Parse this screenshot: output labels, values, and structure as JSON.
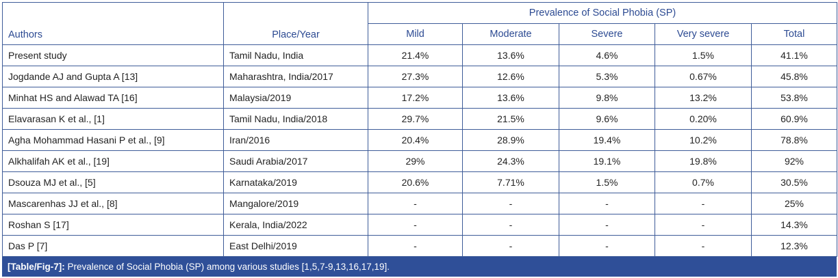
{
  "table": {
    "headers": {
      "authors": "Authors",
      "place": "Place/Year",
      "group": "Prevalence of Social Phobia (SP)",
      "mild": "Mild",
      "moderate": "Moderate",
      "severe": "Severe",
      "very_severe": "Very severe",
      "total": "Total"
    },
    "rows": [
      [
        "Present study",
        "Tamil Nadu, India",
        "21.4%",
        "13.6%",
        "4.6%",
        "1.5%",
        "41.1%"
      ],
      [
        "Jogdande AJ and Gupta A [13]",
        "Maharashtra, India/2017",
        "27.3%",
        "12.6%",
        "5.3%",
        "0.67%",
        "45.8%"
      ],
      [
        "Minhat HS and Alawad TA [16]",
        "Malaysia/2019",
        "17.2%",
        "13.6%",
        "9.8%",
        "13.2%",
        "53.8%"
      ],
      [
        "Elavarasan K et al., [1]",
        "Tamil Nadu, India/2018",
        "29.7%",
        "21.5%",
        "9.6%",
        "0.20%",
        "60.9%"
      ],
      [
        "Agha Mohammad Hasani P et al., [9]",
        "Iran/2016",
        "20.4%",
        "28.9%",
        "19.4%",
        "10.2%",
        "78.8%"
      ],
      [
        "Alkhalifah AK et al., [19]",
        "Saudi Arabia/2017",
        "29%",
        "24.3%",
        "19.1%",
        "19.8%",
        "92%"
      ],
      [
        "Dsouza MJ et al., [5]",
        "Karnataka/2019",
        "20.6%",
        "7.71%",
        "1.5%",
        "0.7%",
        "30.5%"
      ],
      [
        "Mascarenhas JJ et al., [8]",
        "Mangalore/2019",
        "-",
        "-",
        "-",
        "-",
        "25%"
      ],
      [
        "Roshan S [17]",
        "Kerala, India/2022",
        "-",
        "-",
        "-",
        "-",
        "14.3%"
      ],
      [
        "Das P [7]",
        "East Delhi/2019",
        "-",
        "-",
        "-",
        "-",
        "12.3%"
      ]
    ]
  },
  "caption": {
    "label": "[Table/Fig-7]:",
    "text": " Prevalence of Social Phobia (SP) among various studies [1,5,7-9,13,16,17,19]."
  },
  "colors": {
    "header_text": "#2c4a92",
    "border": "#3d5b98",
    "caption_bg": "#2f4f98"
  }
}
